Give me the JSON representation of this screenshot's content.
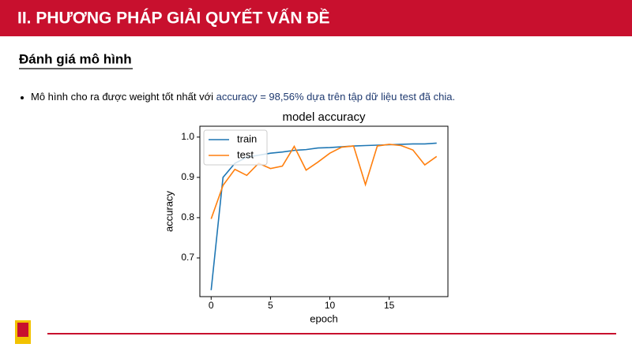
{
  "header": {
    "title": "II. PHƯƠNG PHÁP GIẢI QUYẾT VẤN ĐỀ"
  },
  "section": {
    "title": "Đánh giá mô hình"
  },
  "bullet": {
    "text": "Mô hình cho ra được weight tốt nhất với ",
    "highlight": "accuracy = 98,56% dựa trên tập dữ liệu test đã chia."
  },
  "chart_data": {
    "type": "line",
    "title": "model accuracy",
    "x_label": "epoch",
    "y_label": "accuracy",
    "x": [
      0,
      1,
      2,
      3,
      4,
      5,
      6,
      7,
      8,
      9,
      10,
      11,
      12,
      13,
      14,
      15,
      16,
      17,
      18,
      19
    ],
    "series": [
      {
        "name": "train",
        "color": "#1f77b4",
        "values": [
          0.62,
          0.9,
          0.935,
          0.95,
          0.955,
          0.96,
          0.963,
          0.967,
          0.969,
          0.973,
          0.974,
          0.976,
          0.978,
          0.979,
          0.98,
          0.981,
          0.982,
          0.983,
          0.983,
          0.985
        ]
      },
      {
        "name": "test",
        "color": "#ff7f0e",
        "values": [
          0.797,
          0.88,
          0.92,
          0.905,
          0.935,
          0.922,
          0.928,
          0.977,
          0.918,
          0.938,
          0.96,
          0.975,
          0.978,
          0.882,
          0.978,
          0.982,
          0.979,
          0.968,
          0.931,
          0.952
        ]
      }
    ],
    "xlim": [
      -0.95,
      19.95
    ],
    "ylim": [
      0.604,
      1.027
    ],
    "xticks": [
      0,
      5,
      10,
      15
    ],
    "yticks": [
      0.7,
      0.8,
      0.9,
      {
        "value": 1,
        "label": "1.0"
      }
    ],
    "legend": "upper left"
  }
}
